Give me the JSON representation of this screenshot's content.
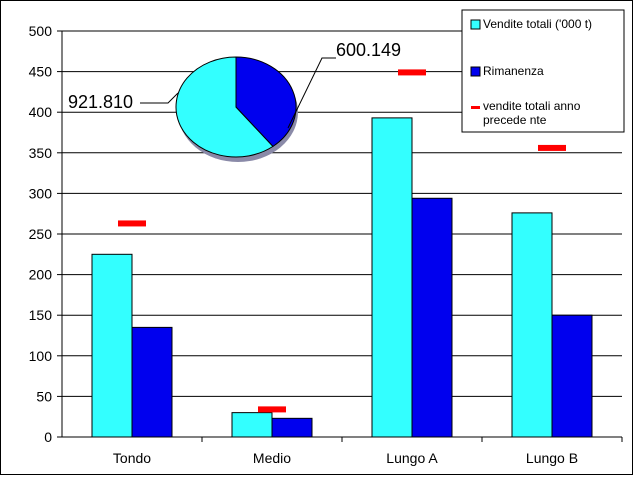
{
  "chart_data": {
    "type": "bar",
    "title": "",
    "xlabel": "",
    "ylabel": "",
    "ylim": [
      0,
      500
    ],
    "yticks": [
      0,
      50,
      100,
      150,
      200,
      250,
      300,
      350,
      400,
      450,
      500
    ],
    "grid": true,
    "categories": [
      "Tondo",
      "Medio",
      "Lungo A",
      "Lungo B"
    ],
    "series": [
      {
        "name": "Vendite totali ('000  t)",
        "type": "bar",
        "color": "#33ffff",
        "values": [
          225,
          30,
          393,
          276
        ]
      },
      {
        "name": "Rimanenza",
        "type": "bar",
        "color": "#0000ee",
        "values": [
          135,
          23,
          294,
          150
        ]
      },
      {
        "name": "vendite totali anno precede nte",
        "type": "marker",
        "color": "#ff0000",
        "values": [
          263,
          34,
          449,
          356
        ]
      }
    ],
    "legend_position": "top-right",
    "inset_pie": {
      "type": "pie",
      "values": [
        921.81,
        600.149
      ],
      "labels": [
        "921.810",
        "600.149"
      ],
      "colors": [
        "#33ffff",
        "#0000ee"
      ]
    }
  }
}
